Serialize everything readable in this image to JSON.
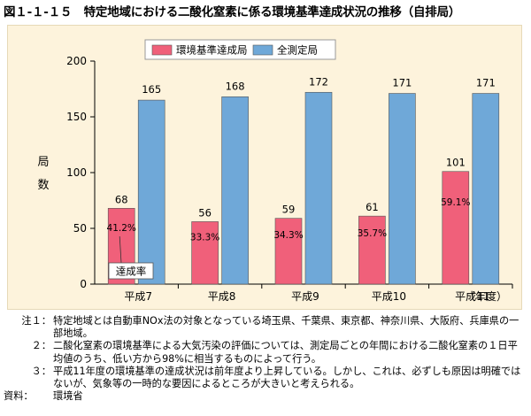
{
  "figure": {
    "title": "図１-１-１５　特定地域における二酸化窒素に係る環境基準達成状況の推移（自排局）"
  },
  "chart_data": {
    "type": "bar",
    "categories": [
      "平成7",
      "平成8",
      "平成9",
      "平成10",
      "平成11"
    ],
    "x_unit": "（年度）",
    "ylabel": "局数",
    "ylim": [
      0,
      200
    ],
    "yticks": [
      0,
      50,
      100,
      150,
      200
    ],
    "grid": false,
    "legend": "top-center",
    "series": [
      {
        "name": "環境基準達成局",
        "color": "#f0607a",
        "values": [
          68,
          56,
          59,
          61,
          101
        ],
        "rate_labels": [
          "41.2%",
          "33.3%",
          "34.3%",
          "35.7%",
          "59.1%"
        ]
      },
      {
        "name": "全測定局",
        "color": "#6fa8d8",
        "values": [
          165,
          168,
          172,
          171,
          171
        ]
      }
    ],
    "annotation": "達成率"
  },
  "notes": [
    {
      "label": "注１：",
      "text": "特定地域とは自動車NOx法の対象となっている埼玉県、千葉県、東京都、神奈川県、大阪府、兵庫県の一部地域。"
    },
    {
      "label": "２：",
      "text": "二酸化窒素の環境基準による大気汚染の評価については、測定局ごとの年間における二酸化窒素の１日平均値のうち、低い方から98%に相当するものによって行う。"
    },
    {
      "label": "３：",
      "text": "平成11年度の環境基準の達成状況は前年度より上昇している。しかし、これは、必ずしも原因は明確ではないが、気象等の一時的な要因によるところが大きいと考えられる。"
    }
  ],
  "source": {
    "label": "資料：",
    "text": "環境省"
  }
}
